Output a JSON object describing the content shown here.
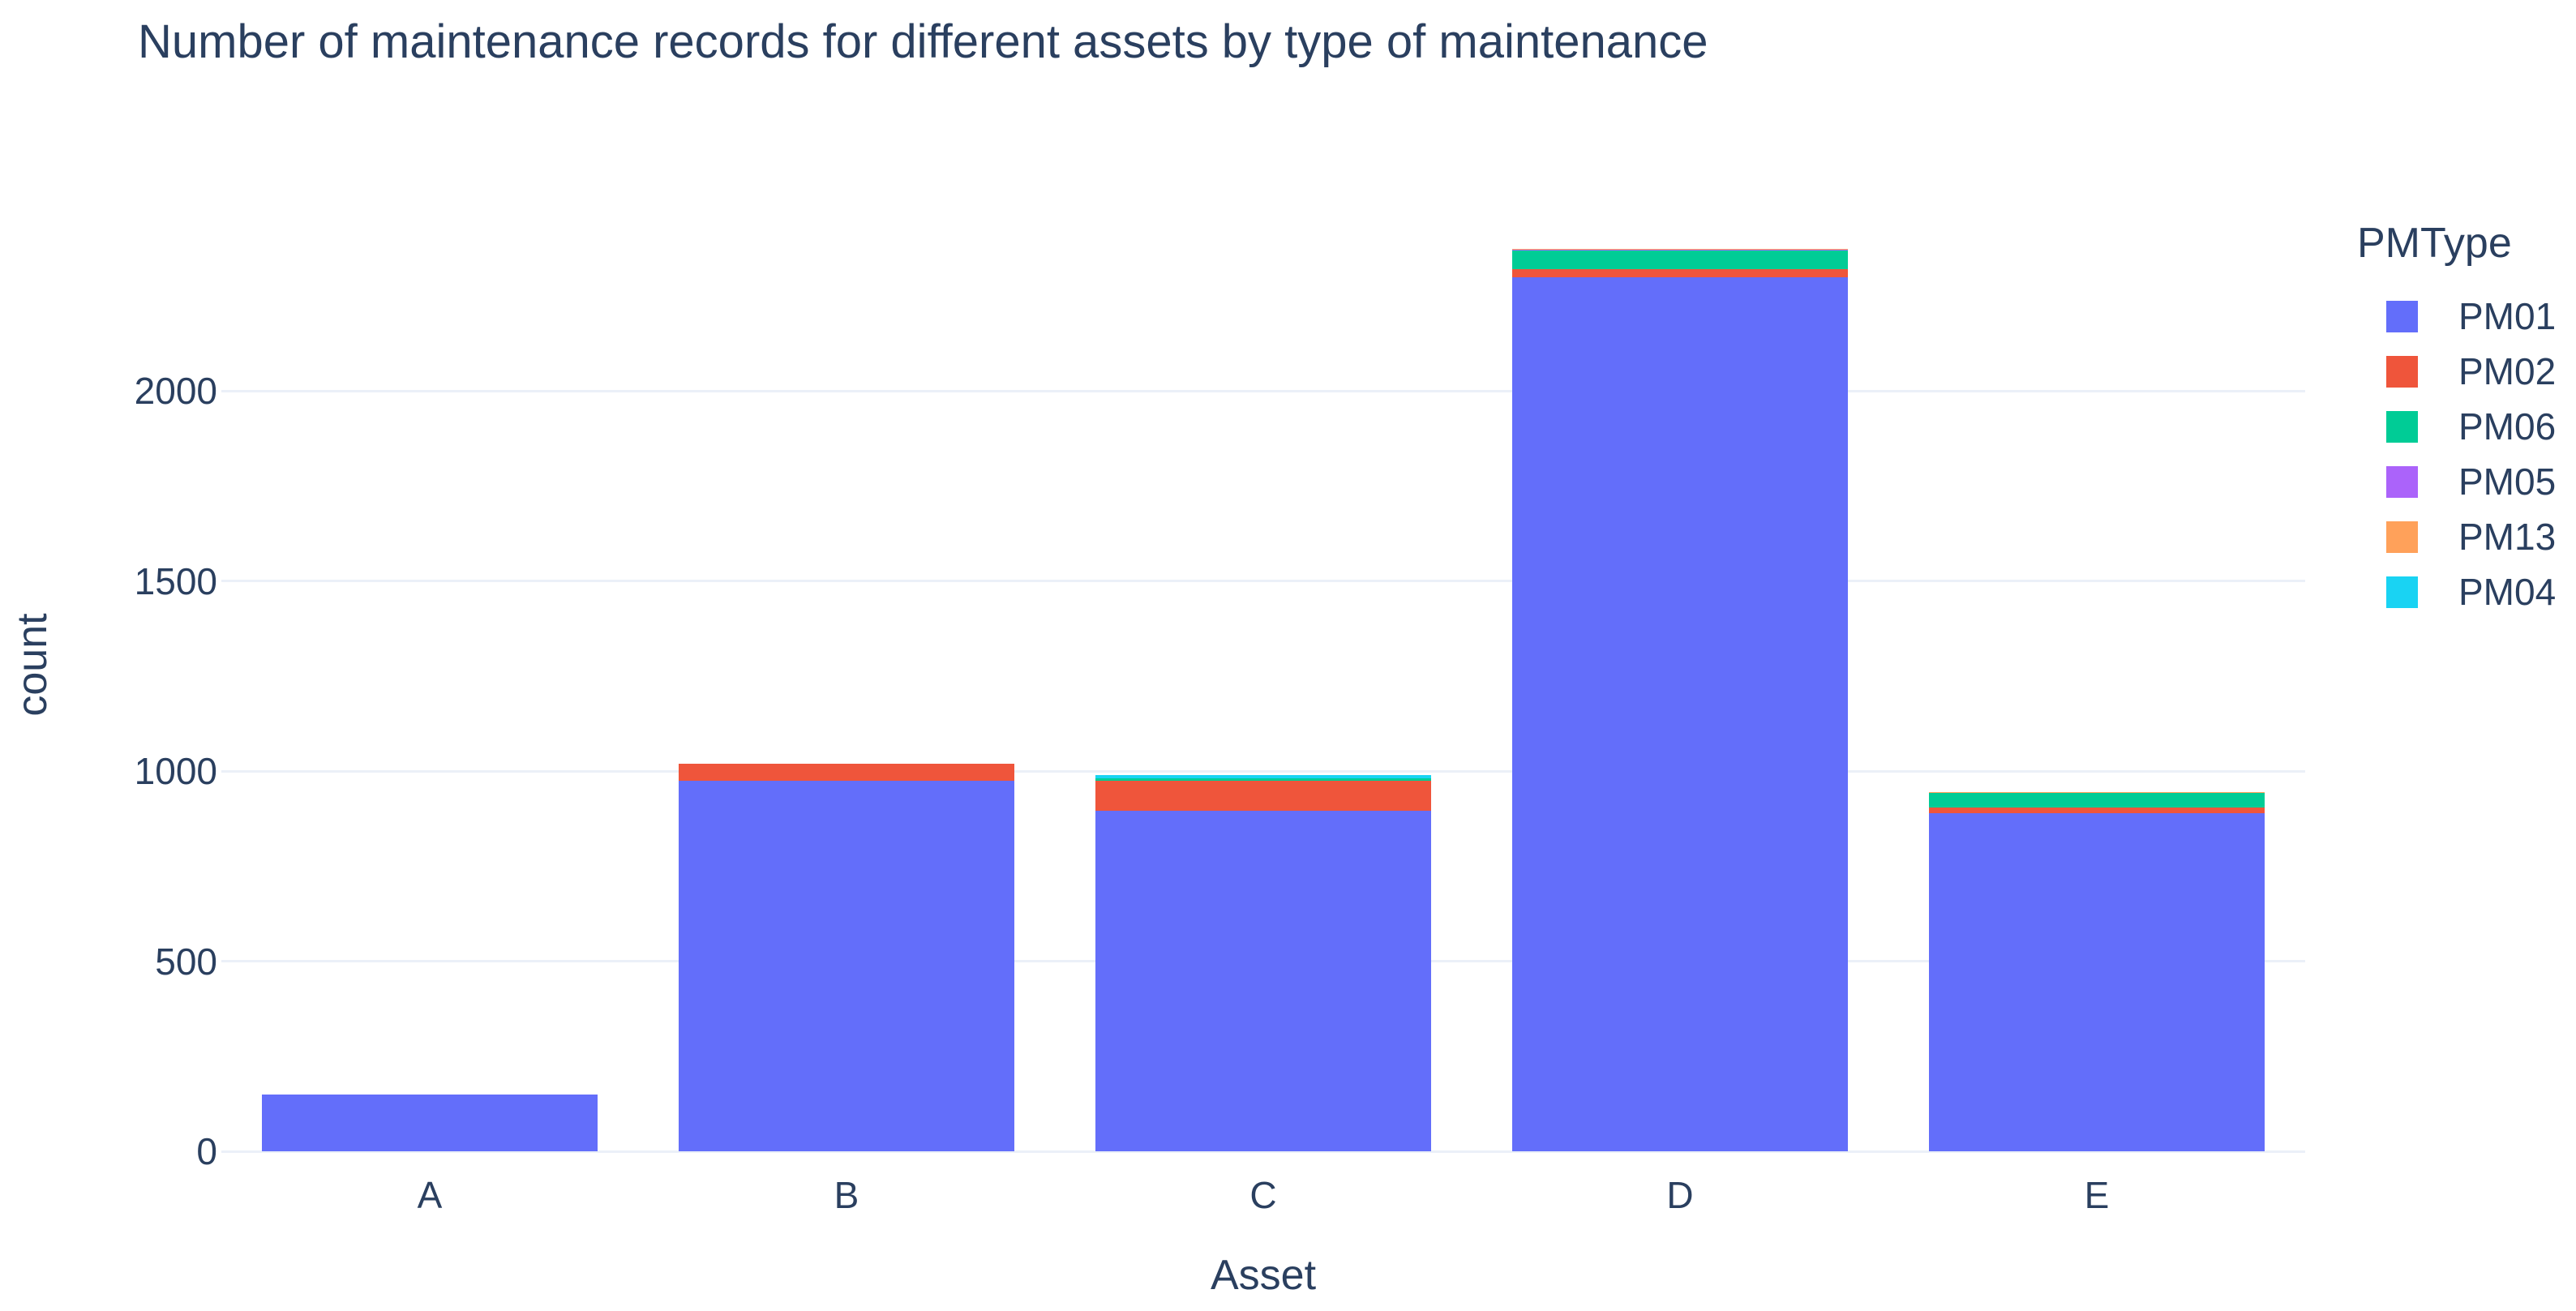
{
  "colors": {
    "text": "#2a3f5f",
    "grid": "#ebf0f8",
    "background": "#ffffff"
  },
  "chart_data": {
    "type": "bar",
    "stacked": true,
    "title": "Number of maintenance records for different assets by type of maintenance",
    "xlabel": "Asset",
    "ylabel": "count",
    "legend_title": "PMType",
    "legend_position": "right",
    "grid": true,
    "categories": [
      "A",
      "B",
      "C",
      "D",
      "E"
    ],
    "series": [
      {
        "name": "PM01",
        "color": "#636EFA",
        "values": [
          150,
          975,
          895,
          2300,
          890
        ]
      },
      {
        "name": "PM02",
        "color": "#EF553B",
        "values": [
          0,
          45,
          79,
          20,
          15
        ]
      },
      {
        "name": "PM06",
        "color": "#00CC96",
        "values": [
          0,
          0,
          7,
          50,
          38
        ]
      },
      {
        "name": "PM05",
        "color": "#AB63FA",
        "values": [
          0,
          0,
          0,
          2,
          0
        ]
      },
      {
        "name": "PM13",
        "color": "#FFA15A",
        "values": [
          0,
          0,
          0,
          2,
          1
        ]
      },
      {
        "name": "PM04",
        "color": "#19D3F3",
        "values": [
          0,
          0,
          8,
          0,
          0
        ]
      }
    ],
    "yticks": [
      0,
      500,
      1000,
      1500,
      2000
    ],
    "ylim": [
      0,
      2730
    ]
  }
}
